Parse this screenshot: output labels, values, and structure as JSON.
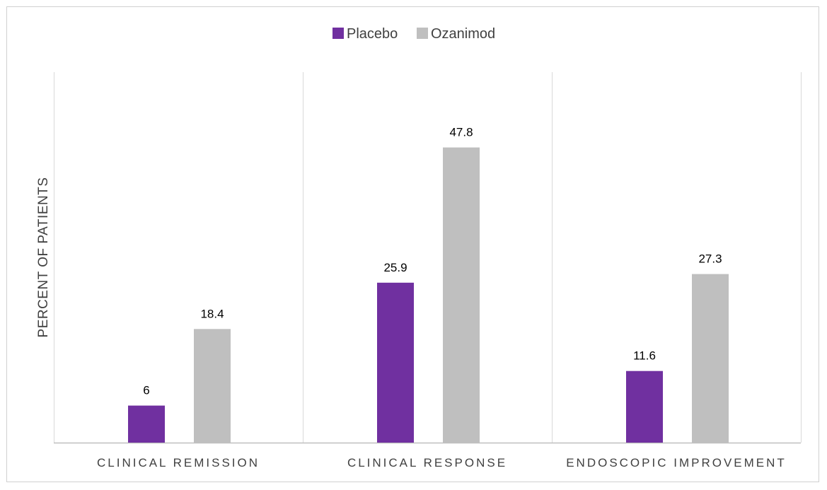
{
  "chart_data": {
    "type": "bar",
    "title": "",
    "xlabel": "",
    "ylabel": "PERCENT OF PATIENTS",
    "categories": [
      "CLINICAL REMISSION",
      "CLINICAL RESPONSE",
      "ENDOSCOPIC IMPROVEMENT"
    ],
    "series": [
      {
        "name": "Placebo",
        "color": "#7030a0",
        "values": [
          6,
          25.9,
          11.6
        ]
      },
      {
        "name": "Ozanimod",
        "color": "#bfbfbf",
        "values": [
          18.4,
          47.8,
          27.3
        ]
      }
    ],
    "ylim": [
      0,
      60
    ],
    "legend": "top-center",
    "grid": "vertical category separators",
    "data_labels": true
  }
}
